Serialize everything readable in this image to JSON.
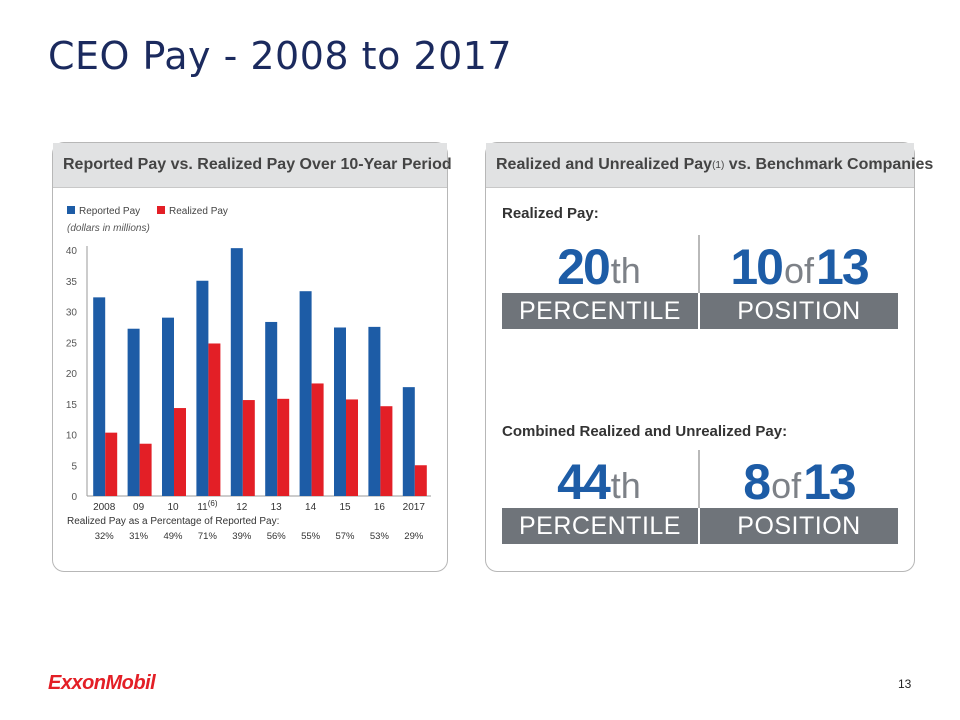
{
  "slide": {
    "title": "CEO Pay - 2008 to 2017",
    "page_number": "13",
    "logo_text": "ExxonMobil"
  },
  "left_panel": {
    "header": "Reported Pay vs. Realized Pay Over 10-Year Period"
  },
  "right_panel": {
    "header": "Realized and Unrealized Pay",
    "header_sup": "(1)",
    "header_suffix": " vs. Benchmark Companies",
    "realized": {
      "label": "Realized Pay:",
      "percentile_num": "20",
      "percentile_suffix": "th",
      "position_num": "10",
      "position_of": "of",
      "position_total": "13",
      "percentile_word": "PERCENTILE",
      "position_word": "POSITION"
    },
    "combined": {
      "label": "Combined Realized and Unrealized Pay:",
      "percentile_num": "44",
      "percentile_suffix": "th",
      "position_num": "8",
      "position_of": "of",
      "position_total": "13",
      "percentile_word": "PERCENTILE",
      "position_word": "POSITION"
    }
  },
  "chart_data": {
    "type": "bar",
    "title": "Reported Pay vs. Realized Pay Over 10-Year Period",
    "unit_note": "(dollars in millions)",
    "categories": [
      "2008",
      "09",
      "10",
      "11",
      "12",
      "13",
      "14",
      "15",
      "16",
      "2017"
    ],
    "category_superscripts": [
      "",
      "",
      "",
      "(6)",
      "",
      "",
      "",
      "",
      "",
      ""
    ],
    "series": [
      {
        "name": "Reported Pay",
        "color": "#1d5ca6",
        "values": [
          32.3,
          27.2,
          29.0,
          35.0,
          40.3,
          28.3,
          33.3,
          27.4,
          27.5,
          17.7
        ]
      },
      {
        "name": "Realized Pay",
        "color": "#e31f26",
        "values": [
          10.3,
          8.5,
          14.3,
          24.8,
          15.6,
          15.8,
          18.3,
          15.7,
          14.6,
          5.0
        ]
      }
    ],
    "yticks": [
      0,
      5,
      10,
      15,
      20,
      25,
      30,
      35,
      40
    ],
    "ylim": [
      0,
      40
    ],
    "legend_position": "top-left",
    "percentage_label": "Realized Pay as a Percentage of Reported Pay:",
    "percentages": [
      "32%",
      "31%",
      "49%",
      "71%",
      "39%",
      "56%",
      "55%",
      "57%",
      "53%",
      "29%"
    ]
  }
}
